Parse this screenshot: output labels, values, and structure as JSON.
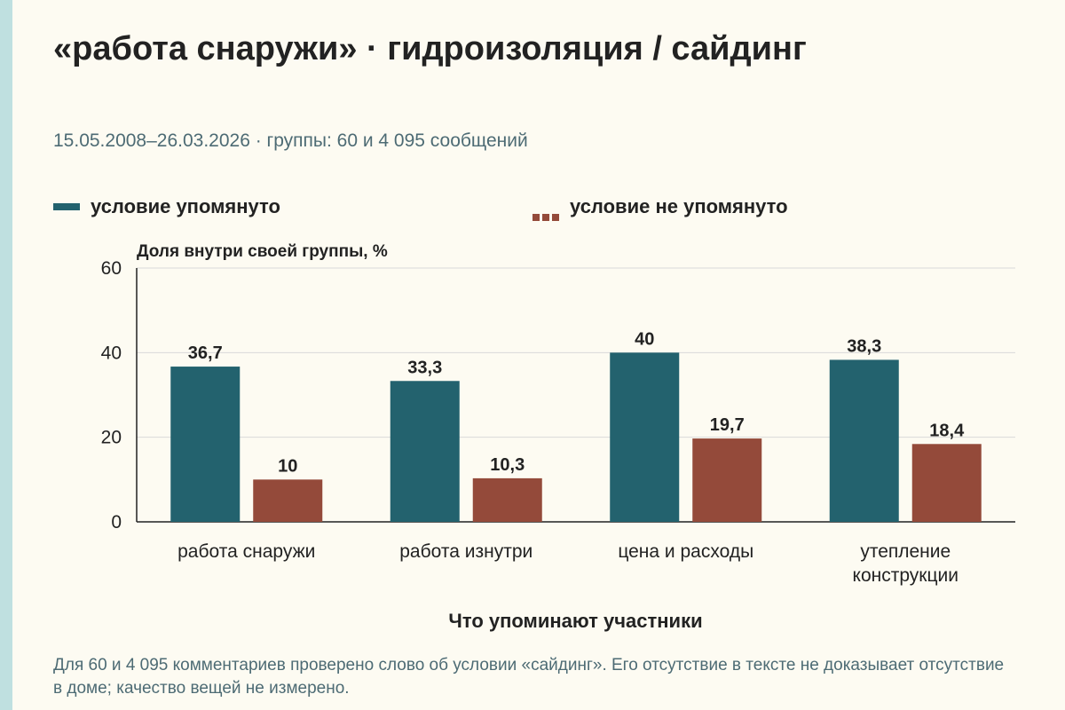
{
  "title": "«работа снаружи» · гидроизоляция / сайдинг",
  "subtitle": "15.05.2008–26.03.2026 · группы: 60 и 4 095 сообщений",
  "note": "Для 60 и 4 095 комментариев проверено слово об условии «сайдинг». Его отсутствие в тексте не доказывает отсутствие в доме; качество вещей не измерено.",
  "colors": {
    "background": "#fdfbf2",
    "accent_strip": "#bfe0e0",
    "mentioned": "#23626e",
    "not_mentioned": "#944a3a",
    "grid": "#d9d9d9",
    "axis": "#222222"
  },
  "chart_data": {
    "type": "bar",
    "title": "«работа снаружи» · гидроизоляция / сайдинг",
    "subtitle": "15.05.2008–26.03.2026 · группы: 60 и 4 095 сообщений",
    "xlabel": "Что упоминают участники",
    "ylabel": "Доля внутри своей группы, %",
    "ylim": [
      0,
      60
    ],
    "yticks": [
      0,
      20,
      40,
      60
    ],
    "grid": true,
    "legend_position": "top",
    "categories": [
      [
        "работа снаружи"
      ],
      [
        "работа изнутри"
      ],
      [
        "цена и расходы"
      ],
      [
        "утепление",
        "конструкции"
      ]
    ],
    "series": [
      {
        "name": "условие упомянуто",
        "color": "#23626e",
        "values": [
          36.7,
          33.3,
          40,
          38.3
        ],
        "labels": [
          "36,7",
          "33,3",
          "40",
          "38,3"
        ]
      },
      {
        "name": "условие не упомянуто",
        "color": "#944a3a",
        "values": [
          10,
          10.3,
          19.7,
          18.4
        ],
        "labels": [
          "10",
          "10,3",
          "19,7",
          "18,4"
        ]
      }
    ]
  }
}
